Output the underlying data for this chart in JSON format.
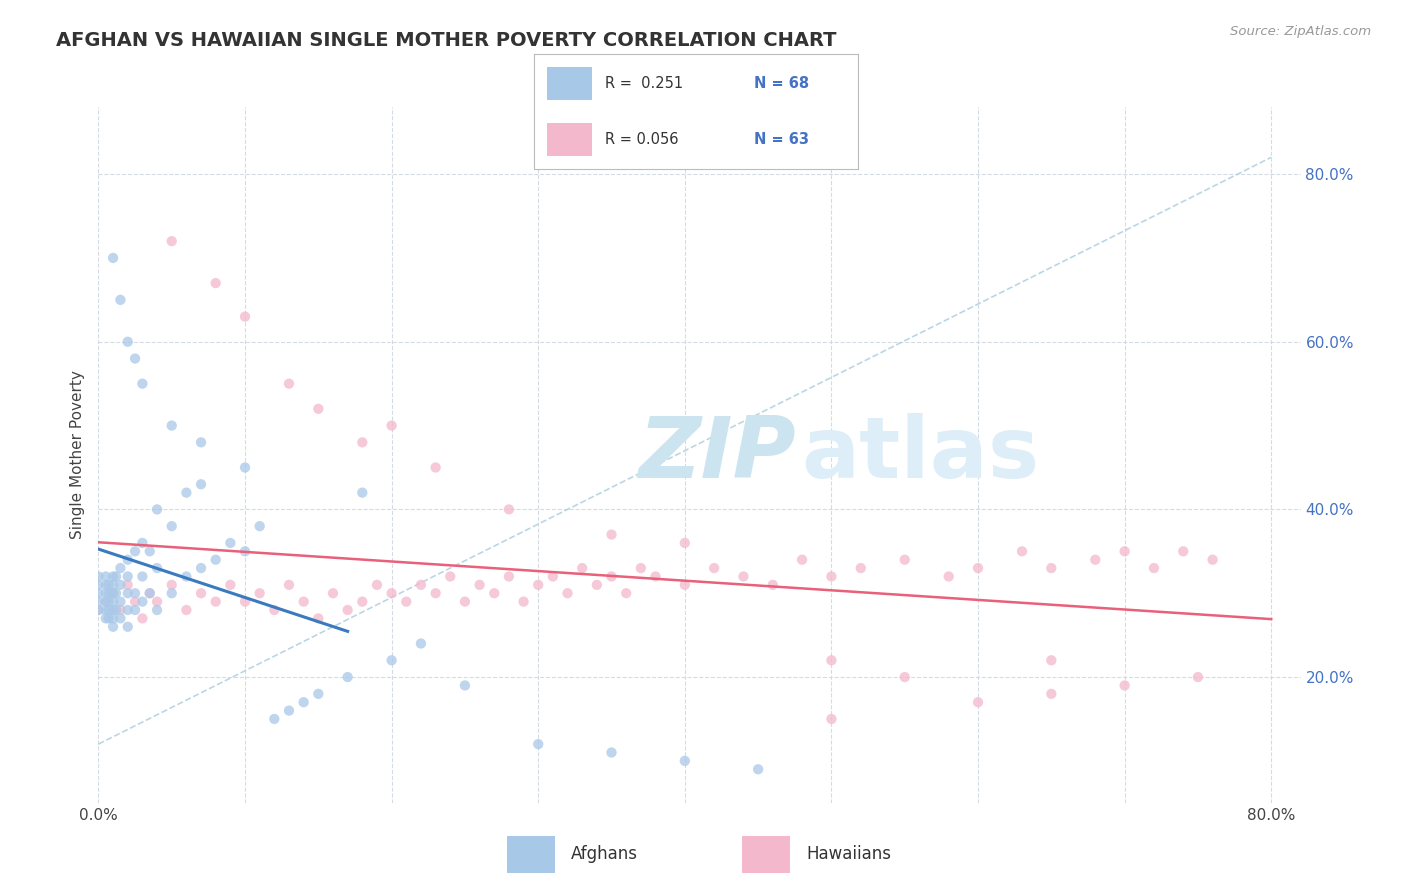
{
  "title": "AFGHAN VS HAWAIIAN SINGLE MOTHER POVERTY CORRELATION CHART",
  "source_text": "Source: ZipAtlas.com",
  "ylabel": "Single Mother Poverty",
  "xlim": [
    0.0,
    0.82
  ],
  "ylim": [
    0.05,
    0.88
  ],
  "R_afghan": 0.251,
  "N_afghan": 68,
  "R_hawaiian": 0.056,
  "N_hawaiian": 63,
  "afghan_color": "#a8c8e8",
  "hawaiian_color": "#f4b8cc",
  "afghan_line_color": "#3a7abf",
  "hawaiian_line_color": "#e8607a",
  "background_color": "#ffffff",
  "grid_color": "#d0d8e0",
  "watermark_color": "#ddeef8",
  "afghan_scatter_x": [
    0.0,
    0.0,
    0.0,
    0.0,
    0.0,
    0.005,
    0.005,
    0.005,
    0.005,
    0.005,
    0.005,
    0.007,
    0.007,
    0.007,
    0.007,
    0.007,
    0.01,
    0.01,
    0.01,
    0.01,
    0.01,
    0.01,
    0.01,
    0.012,
    0.012,
    0.012,
    0.015,
    0.015,
    0.015,
    0.015,
    0.02,
    0.02,
    0.02,
    0.02,
    0.02,
    0.025,
    0.025,
    0.025,
    0.03,
    0.03,
    0.03,
    0.035,
    0.035,
    0.04,
    0.04,
    0.04,
    0.05,
    0.05,
    0.06,
    0.06,
    0.07,
    0.07,
    0.08,
    0.09,
    0.1,
    0.11,
    0.12,
    0.13,
    0.14,
    0.15,
    0.17,
    0.2,
    0.22,
    0.25,
    0.3,
    0.35,
    0.4,
    0.45
  ],
  "afghan_scatter_y": [
    0.29,
    0.3,
    0.31,
    0.32,
    0.28,
    0.27,
    0.28,
    0.29,
    0.3,
    0.31,
    0.32,
    0.28,
    0.29,
    0.3,
    0.31,
    0.27,
    0.26,
    0.27,
    0.28,
    0.29,
    0.3,
    0.31,
    0.32,
    0.28,
    0.3,
    0.32,
    0.27,
    0.29,
    0.31,
    0.33,
    0.26,
    0.28,
    0.3,
    0.32,
    0.34,
    0.28,
    0.3,
    0.35,
    0.29,
    0.32,
    0.36,
    0.3,
    0.35,
    0.28,
    0.33,
    0.4,
    0.3,
    0.38,
    0.32,
    0.42,
    0.33,
    0.43,
    0.34,
    0.36,
    0.35,
    0.38,
    0.15,
    0.16,
    0.17,
    0.18,
    0.2,
    0.22,
    0.24,
    0.19,
    0.12,
    0.11,
    0.1,
    0.09
  ],
  "afghan_outlier_x": [
    0.01,
    0.015,
    0.02,
    0.025,
    0.03,
    0.05,
    0.07,
    0.1,
    0.18
  ],
  "afghan_outlier_y": [
    0.7,
    0.65,
    0.6,
    0.58,
    0.55,
    0.5,
    0.48,
    0.45,
    0.42
  ],
  "hawaiian_scatter_x": [
    0.0,
    0.005,
    0.01,
    0.015,
    0.02,
    0.025,
    0.03,
    0.035,
    0.04,
    0.05,
    0.06,
    0.07,
    0.08,
    0.09,
    0.1,
    0.11,
    0.12,
    0.13,
    0.14,
    0.15,
    0.16,
    0.17,
    0.18,
    0.19,
    0.2,
    0.21,
    0.22,
    0.23,
    0.24,
    0.25,
    0.26,
    0.27,
    0.28,
    0.29,
    0.3,
    0.31,
    0.32,
    0.33,
    0.34,
    0.35,
    0.36,
    0.37,
    0.38,
    0.4,
    0.42,
    0.44,
    0.46,
    0.48,
    0.5,
    0.52,
    0.55,
    0.58,
    0.6,
    0.63,
    0.65,
    0.68,
    0.7,
    0.72,
    0.74,
    0.76,
    0.5,
    0.55,
    0.65
  ],
  "hawaiian_scatter_y": [
    0.28,
    0.29,
    0.3,
    0.28,
    0.31,
    0.29,
    0.27,
    0.3,
    0.29,
    0.31,
    0.28,
    0.3,
    0.29,
    0.31,
    0.29,
    0.3,
    0.28,
    0.31,
    0.29,
    0.27,
    0.3,
    0.28,
    0.29,
    0.31,
    0.3,
    0.29,
    0.31,
    0.3,
    0.32,
    0.29,
    0.31,
    0.3,
    0.32,
    0.29,
    0.31,
    0.32,
    0.3,
    0.33,
    0.31,
    0.32,
    0.3,
    0.33,
    0.32,
    0.31,
    0.33,
    0.32,
    0.31,
    0.34,
    0.32,
    0.33,
    0.34,
    0.32,
    0.33,
    0.35,
    0.33,
    0.34,
    0.35,
    0.33,
    0.35,
    0.34,
    0.22,
    0.2,
    0.22
  ],
  "hawaiian_outlier_x": [
    0.05,
    0.08,
    0.1,
    0.13,
    0.15,
    0.18,
    0.2,
    0.23,
    0.28,
    0.35,
    0.4,
    0.5,
    0.6,
    0.65,
    0.7,
    0.75
  ],
  "hawaiian_outlier_y": [
    0.72,
    0.67,
    0.63,
    0.55,
    0.52,
    0.48,
    0.5,
    0.45,
    0.4,
    0.37,
    0.36,
    0.15,
    0.17,
    0.18,
    0.19,
    0.2
  ]
}
